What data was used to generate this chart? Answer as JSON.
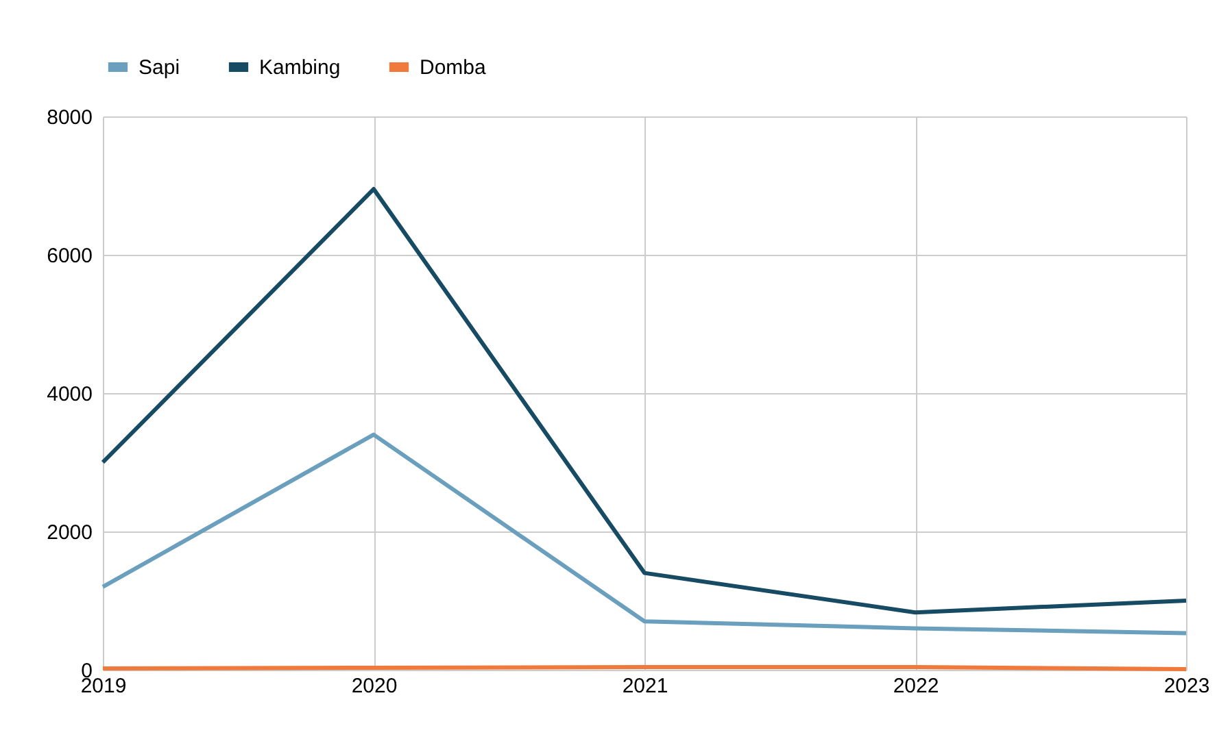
{
  "chart_data": {
    "type": "line",
    "categories": [
      "2019",
      "2020",
      "2021",
      "2022",
      "2023"
    ],
    "series": [
      {
        "name": "Sapi",
        "color": "#6a9fbd",
        "values": [
          1200,
          3400,
          700,
          600,
          530
        ]
      },
      {
        "name": "Kambing",
        "color": "#174a63",
        "values": [
          3000,
          6950,
          1400,
          830,
          1000
        ]
      },
      {
        "name": "Domba",
        "color": "#f07a3c",
        "values": [
          20,
          30,
          40,
          40,
          10
        ]
      }
    ],
    "ylim": [
      0,
      8000
    ],
    "yticks": [
      0,
      2000,
      4000,
      6000,
      8000
    ],
    "grid": true,
    "legend": "top",
    "marker": "none",
    "line_style": "solid"
  }
}
